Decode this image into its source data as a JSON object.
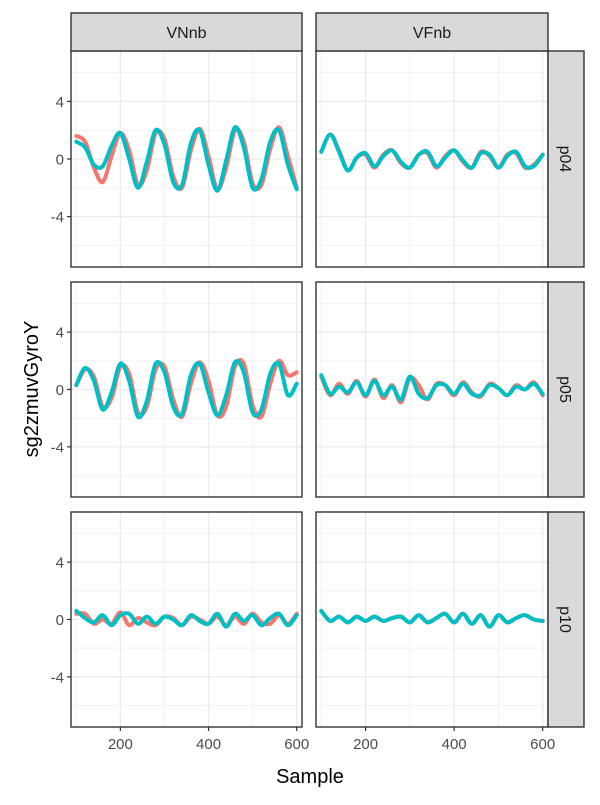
{
  "chart_data": {
    "type": "line",
    "title": "",
    "xlabel": "Sample",
    "ylabel": "sg2zmuvGyroY",
    "xlim": [
      88,
      612
    ],
    "ylim": [
      -7.5,
      7.5
    ],
    "x_ticks": [
      200,
      400,
      600
    ],
    "y_ticks": [
      -4,
      0,
      4
    ],
    "x_tick_labels": [
      "200",
      "400",
      "600"
    ],
    "y_tick_labels": [
      "-4",
      "0",
      "4"
    ],
    "grid": true,
    "legend": "none",
    "facet_cols": [
      "VNnb",
      "VFnb"
    ],
    "facet_rows": [
      "p04",
      "p05",
      "p10"
    ],
    "x": [
      100,
      120,
      140,
      160,
      180,
      200,
      220,
      240,
      260,
      280,
      300,
      320,
      340,
      360,
      380,
      400,
      420,
      440,
      460,
      480,
      500,
      520,
      540,
      560,
      580,
      600
    ],
    "series_colors": [
      "#F8766D",
      "#00BFC4"
    ],
    "panels": [
      {
        "col": "VNnb",
        "row": "p04",
        "series": [
          {
            "color": "#F8766D",
            "values": [
              1.6,
              1.2,
              -0.6,
              -1.6,
              0.2,
              1.8,
              0.6,
              -1.8,
              -0.8,
              1.8,
              1.4,
              -1.2,
              -2.0,
              0.6,
              2.1,
              0.2,
              -2.1,
              -0.6,
              2.0,
              1.2,
              -1.7,
              -1.8,
              0.7,
              2.2,
              0.2,
              -2.0
            ]
          },
          {
            "color": "#00BFC4",
            "values": [
              1.2,
              0.8,
              -0.4,
              -0.5,
              0.9,
              1.8,
              0.0,
              -2.0,
              -0.2,
              2.0,
              1.0,
              -1.6,
              -1.8,
              1.1,
              2.0,
              -0.4,
              -2.2,
              -0.1,
              2.2,
              0.8,
              -2.0,
              -1.4,
              1.2,
              2.0,
              -0.4,
              -2.1
            ]
          }
        ]
      },
      {
        "col": "VFnb",
        "row": "p04",
        "series": [
          {
            "color": "#F8766D",
            "values": [
              0.5,
              1.7,
              0.6,
              -0.8,
              0.1,
              0.3,
              -0.6,
              0.3,
              0.6,
              -0.3,
              -0.6,
              0.3,
              0.4,
              -0.6,
              0.2,
              0.6,
              -0.2,
              -0.6,
              0.5,
              0.2,
              -0.6,
              0.3,
              0.4,
              -0.6,
              -0.4,
              0.3
            ]
          },
          {
            "color": "#00BFC4",
            "values": [
              0.5,
              1.7,
              0.5,
              -0.8,
              0.1,
              0.4,
              -0.5,
              0.2,
              0.6,
              -0.2,
              -0.6,
              0.3,
              0.5,
              -0.5,
              0.1,
              0.6,
              -0.1,
              -0.6,
              0.4,
              0.3,
              -0.6,
              0.2,
              0.5,
              -0.5,
              -0.5,
              0.3
            ]
          }
        ]
      },
      {
        "col": "VNnb",
        "row": "p05",
        "series": [
          {
            "color": "#F8766D",
            "values": [
              0.3,
              1.4,
              0.9,
              -1.2,
              -0.6,
              1.6,
              1.1,
              -1.6,
              -1.2,
              1.4,
              1.6,
              -0.7,
              -1.9,
              0.4,
              1.9,
              0.6,
              -1.8,
              -1.2,
              1.6,
              1.8,
              -1.1,
              -1.9,
              0.4,
              2.0,
              1.0,
              1.2
            ]
          },
          {
            "color": "#00BFC4",
            "values": [
              0.3,
              1.5,
              0.6,
              -1.4,
              -0.2,
              1.8,
              0.6,
              -1.9,
              -0.8,
              1.8,
              1.2,
              -1.2,
              -1.7,
              1.0,
              1.8,
              -0.2,
              -1.8,
              -0.4,
              1.9,
              1.2,
              -1.6,
              -1.4,
              1.1,
              1.8,
              -0.4,
              0.4
            ]
          }
        ]
      },
      {
        "col": "VFnb",
        "row": "p05",
        "series": [
          {
            "color": "#F8766D",
            "values": [
              0.9,
              -0.4,
              0.4,
              -0.3,
              0.6,
              -0.5,
              0.7,
              -0.6,
              0.3,
              -0.9,
              0.8,
              0.3,
              -0.7,
              0.4,
              0.3,
              -0.4,
              0.5,
              -0.2,
              -0.5,
              0.4,
              0.1,
              -0.4,
              0.3,
              0.0,
              0.5,
              -0.4
            ]
          },
          {
            "color": "#00BFC4",
            "values": [
              1.0,
              -0.3,
              0.2,
              -0.2,
              0.5,
              -0.4,
              0.6,
              -0.4,
              0.2,
              -0.7,
              0.9,
              -0.3,
              -0.6,
              0.3,
              0.3,
              -0.3,
              0.4,
              -0.3,
              -0.4,
              0.3,
              0.1,
              -0.4,
              0.2,
              0.0,
              0.4,
              -0.3
            ]
          }
        ]
      },
      {
        "col": "VNnb",
        "row": "p10",
        "series": [
          {
            "color": "#F8766D",
            "values": [
              0.4,
              0.4,
              -0.3,
              0.0,
              -0.3,
              0.5,
              -0.4,
              0.1,
              -0.2,
              -0.4,
              0.2,
              0.1,
              -0.4,
              0.2,
              0.0,
              -0.3,
              0.2,
              -0.4,
              0.2,
              -0.3,
              0.4,
              -0.2,
              -0.3,
              0.3,
              -0.3,
              0.4
            ]
          },
          {
            "color": "#00BFC4",
            "values": [
              0.6,
              0.1,
              -0.2,
              0.3,
              -0.4,
              0.3,
              0.4,
              -0.3,
              0.2,
              -0.3,
              0.2,
              0.0,
              -0.4,
              0.3,
              -0.1,
              -0.3,
              0.4,
              -0.5,
              0.4,
              -0.1,
              0.3,
              -0.4,
              0.1,
              0.4,
              -0.4,
              0.3
            ]
          }
        ]
      },
      {
        "col": "VFnb",
        "row": "p10",
        "series": [
          {
            "color": "#F8766D",
            "values": [
              0.6,
              -0.1,
              0.2,
              -0.2,
              0.2,
              -0.1,
              0.2,
              -0.1,
              0.1,
              0.2,
              -0.2,
              0.3,
              -0.2,
              0.1,
              0.4,
              -0.2,
              0.4,
              -0.3,
              0.3,
              -0.5,
              0.3,
              -0.2,
              0.1,
              0.3,
              0.0,
              -0.1
            ]
          },
          {
            "color": "#00BFC4",
            "values": [
              0.6,
              -0.1,
              0.2,
              -0.2,
              0.2,
              -0.1,
              0.2,
              -0.1,
              0.1,
              0.2,
              -0.2,
              0.3,
              -0.2,
              0.1,
              0.4,
              -0.2,
              0.4,
              -0.3,
              0.3,
              -0.5,
              0.3,
              -0.2,
              0.1,
              0.3,
              0.0,
              -0.1
            ]
          }
        ]
      }
    ]
  }
}
